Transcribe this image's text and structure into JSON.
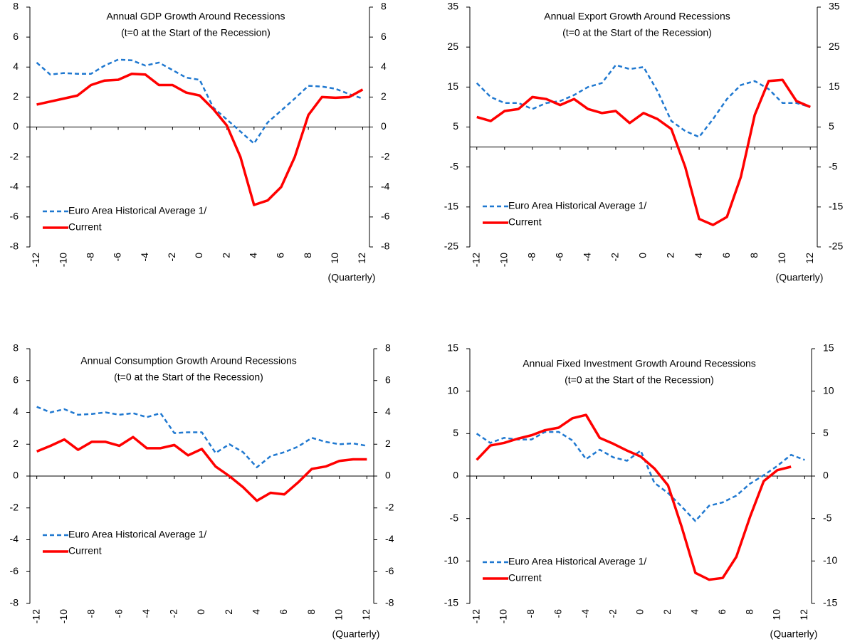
{
  "chart_data": [
    {
      "type": "line",
      "title": "Annual GDP Growth Around Recessions",
      "subtitle": "(t=0 at the Start of the Recession)",
      "xlabel": "(Quarterly)",
      "x": [
        -12,
        -11,
        -10,
        -9,
        -8,
        -7,
        -6,
        -5,
        -4,
        -3,
        -2,
        -1,
        0,
        1,
        2,
        3,
        4,
        5,
        6,
        7,
        8,
        9,
        10,
        11,
        12
      ],
      "xlim": [
        -12.5,
        12.5
      ],
      "xticks": [
        -12,
        -10,
        -8,
        -6,
        -4,
        -2,
        0,
        2,
        4,
        6,
        8,
        10,
        12
      ],
      "ylim": [
        -8,
        8
      ],
      "yticks": [
        -8,
        -6,
        -4,
        -2,
        0,
        2,
        4,
        6,
        8
      ],
      "y2lim": [
        -8,
        8
      ],
      "y2ticks": [
        -8,
        -6,
        -4,
        -2,
        0,
        2,
        4,
        6,
        8
      ],
      "legend": "lower left",
      "series": [
        {
          "name": "Euro Area Historical Average 1/",
          "color": "#1f78d0",
          "line_style": "dashed",
          "values": [
            4.3,
            3.5,
            3.6,
            3.55,
            3.55,
            4.1,
            4.5,
            4.45,
            4.1,
            4.3,
            3.8,
            3.3,
            3.15,
            1.3,
            0.5,
            -0.3,
            -1.1,
            0.3,
            1.1,
            1.9,
            2.75,
            2.7,
            2.55,
            2.2,
            1.9
          ]
        },
        {
          "name": "Current",
          "color": "#ff0000",
          "line_style": "solid",
          "values": [
            1.5,
            1.7,
            1.9,
            2.1,
            2.8,
            3.1,
            3.15,
            3.55,
            3.5,
            2.8,
            2.8,
            2.3,
            2.1,
            1.2,
            0.1,
            -2.0,
            -5.2,
            -4.9,
            -4.0,
            -2.0,
            0.8,
            2.0,
            1.95,
            2.0,
            2.5
          ]
        }
      ]
    },
    {
      "type": "line",
      "title": "Annual Export Growth Around Recessions",
      "subtitle": "(t=0 at the Start of the Recession)",
      "xlabel": "(Quarterly)",
      "x": [
        -12,
        -11,
        -10,
        -9,
        -8,
        -7,
        -6,
        -5,
        -4,
        -3,
        -2,
        -1,
        0,
        1,
        2,
        3,
        4,
        5,
        6,
        7,
        8,
        9,
        10,
        11,
        12
      ],
      "xlim": [
        -12.5,
        12.5
      ],
      "xticks": [
        -12,
        -10,
        -8,
        -6,
        -4,
        -2,
        0,
        2,
        4,
        6,
        8,
        10,
        12
      ],
      "ylim": [
        -25,
        35
      ],
      "yticks": [
        -25,
        -15,
        -5,
        5,
        15,
        25,
        35
      ],
      "y2lim": [
        -25,
        35
      ],
      "y2ticks": [
        -25,
        -15,
        -5,
        5,
        15,
        25,
        35
      ],
      "legend": "lower left",
      "series": [
        {
          "name": "Euro Area Historical Average 1/",
          "color": "#1f78d0",
          "line_style": "dashed",
          "values": [
            16,
            12.5,
            11,
            11,
            9.5,
            11,
            11.5,
            13,
            15,
            16,
            20.5,
            19.5,
            20,
            14,
            6.5,
            4,
            2.5,
            7,
            12,
            15.5,
            16.5,
            14.5,
            11,
            11,
            10
          ]
        },
        {
          "name": "Current",
          "color": "#ff0000",
          "line_style": "solid",
          "values": [
            7.5,
            6.5,
            9,
            9.5,
            12.5,
            12,
            10.5,
            12,
            9.5,
            8.5,
            9,
            6,
            8.5,
            7,
            4.5,
            -5,
            -18,
            -19.5,
            -17.5,
            -7.5,
            8,
            16.5,
            16.8,
            11.5,
            10
          ]
        }
      ]
    },
    {
      "type": "line",
      "title": "Annual Consumption Growth Around Recessions",
      "subtitle": "(t=0 at the Start of the Recession)",
      "xlabel": "(Quarterly)",
      "x": [
        -12,
        -11,
        -10,
        -9,
        -8,
        -7,
        -6,
        -5,
        -4,
        -3,
        -2,
        -1,
        0,
        1,
        2,
        3,
        4,
        5,
        6,
        7,
        8,
        9,
        10,
        11,
        12
      ],
      "xlim": [
        -12.5,
        12.5
      ],
      "xticks": [
        -12,
        -10,
        -8,
        -6,
        -4,
        -2,
        0,
        2,
        4,
        6,
        8,
        10,
        12
      ],
      "ylim": [
        -8,
        8
      ],
      "yticks": [
        -8,
        -6,
        -4,
        -2,
        0,
        2,
        4,
        6,
        8
      ],
      "y2lim": [
        -8,
        8
      ],
      "y2ticks": [
        -8,
        -6,
        -4,
        -2,
        0,
        2,
        4,
        6,
        8
      ],
      "legend": "lower left",
      "series": [
        {
          "name": "Euro Area Historical Average 1/",
          "color": "#1f78d0",
          "line_style": "dashed",
          "values": [
            4.35,
            4.0,
            4.2,
            3.85,
            3.9,
            4.0,
            3.85,
            3.95,
            3.7,
            3.95,
            2.7,
            2.75,
            2.75,
            1.45,
            2.0,
            1.5,
            0.55,
            1.25,
            1.5,
            1.85,
            2.4,
            2.15,
            2.0,
            2.05,
            1.9
          ]
        },
        {
          "name": "Current",
          "color": "#ff0000",
          "line_style": "solid",
          "values": [
            1.55,
            1.9,
            2.3,
            1.65,
            2.15,
            2.15,
            1.9,
            2.45,
            1.75,
            1.75,
            1.95,
            1.3,
            1.7,
            0.6,
            0.0,
            -0.7,
            -1.55,
            -1.05,
            -1.15,
            -0.4,
            0.45,
            0.6,
            0.95,
            1.05,
            1.05
          ]
        }
      ]
    },
    {
      "type": "line",
      "title": "Annual Fixed Investment Growth Around Recessions",
      "subtitle": "(t=0 at the Start of the Recession)",
      "xlabel": "(Quarterly)",
      "x": [
        -12,
        -11,
        -10,
        -9,
        -8,
        -7,
        -6,
        -5,
        -4,
        -3,
        -2,
        -1,
        0,
        1,
        2,
        3,
        4,
        5,
        6,
        7,
        8,
        9,
        10,
        11,
        12
      ],
      "xlim": [
        -12.5,
        12.5
      ],
      "xticks": [
        -12,
        -10,
        -8,
        -6,
        -4,
        -2,
        0,
        2,
        4,
        6,
        8,
        10,
        12
      ],
      "ylim": [
        -15,
        15
      ],
      "yticks": [
        -15,
        -10,
        -5,
        0,
        5,
        10,
        15
      ],
      "y2lim": [
        -15,
        15
      ],
      "y2ticks": [
        -15,
        -10,
        -5,
        0,
        5,
        10,
        15
      ],
      "legend": "lower left",
      "series": [
        {
          "name": "Euro Area Historical Average 1/",
          "color": "#1f78d0",
          "line_style": "dashed",
          "values": [
            5.0,
            3.9,
            4.5,
            4.3,
            4.3,
            5.2,
            5.2,
            4.2,
            2.0,
            3.1,
            2.2,
            1.8,
            3.0,
            -0.8,
            -2.0,
            -3.6,
            -5.3,
            -3.5,
            -3.1,
            -2.3,
            -0.9,
            0.1,
            1.2,
            2.5,
            1.9
          ]
        },
        {
          "name": "Current",
          "color": "#ff0000",
          "line_style": "solid",
          "values": [
            1.9,
            3.6,
            3.9,
            4.4,
            4.8,
            5.4,
            5.7,
            6.8,
            7.2,
            4.5,
            3.8,
            3.0,
            2.3,
            0.9,
            -1.1,
            -6.0,
            -11.4,
            -12.2,
            -12.0,
            -9.5,
            -4.8,
            -0.6,
            0.7,
            1.1,
            null
          ]
        }
      ]
    }
  ]
}
